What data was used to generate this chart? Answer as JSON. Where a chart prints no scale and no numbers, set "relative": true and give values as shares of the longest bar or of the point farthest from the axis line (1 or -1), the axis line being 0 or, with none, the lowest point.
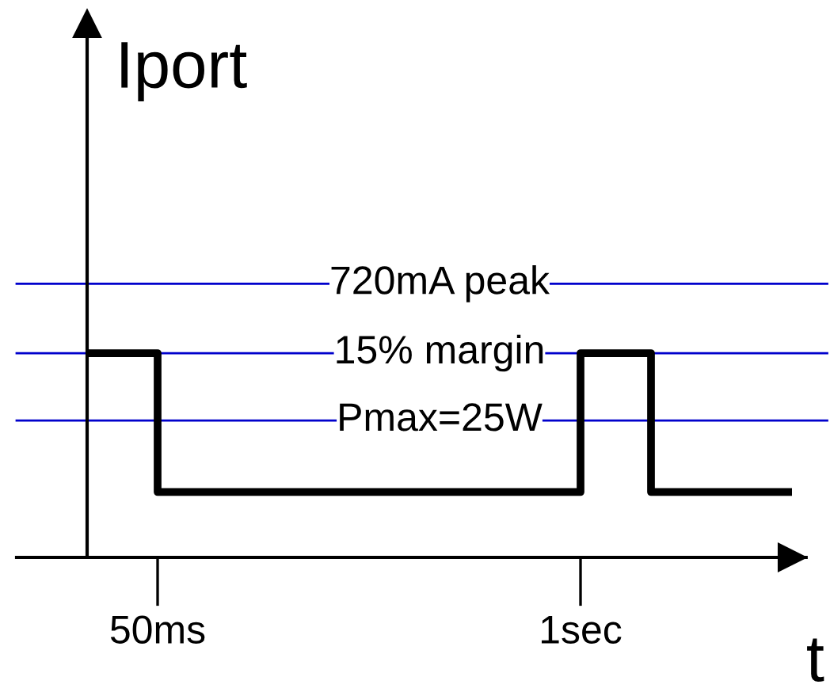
{
  "chart_data": {
    "type": "step",
    "relative": true,
    "ylabel": "Iport",
    "xlabel": "t",
    "categories": [
      null,
      "50ms",
      null,
      null,
      null,
      null,
      null,
      "1sec",
      null,
      null,
      null
    ],
    "series": [
      {
        "color": "#000000",
        "values": [
          1,
          0.32,
          0.32,
          0.32,
          0.32,
          0.32,
          0.32,
          1,
          0.32,
          0.32,
          0.32
        ]
      }
    ],
    "ref_lines": [
      {
        "axis": "y",
        "value": 1.34,
        "color": "#0000cc"
      },
      {
        "axis": "y",
        "value": 1.0,
        "color": "#0000cc"
      },
      {
        "axis": "y",
        "value": 0.67,
        "color": "#0000cc"
      }
    ],
    "annotations": [
      {
        "text": "720mA peak",
        "y": 1.34
      },
      {
        "text": "15% margin",
        "y": 1.0
      },
      {
        "text": "Pmax=25W",
        "y": 0.67
      }
    ],
    "legend": false
  }
}
